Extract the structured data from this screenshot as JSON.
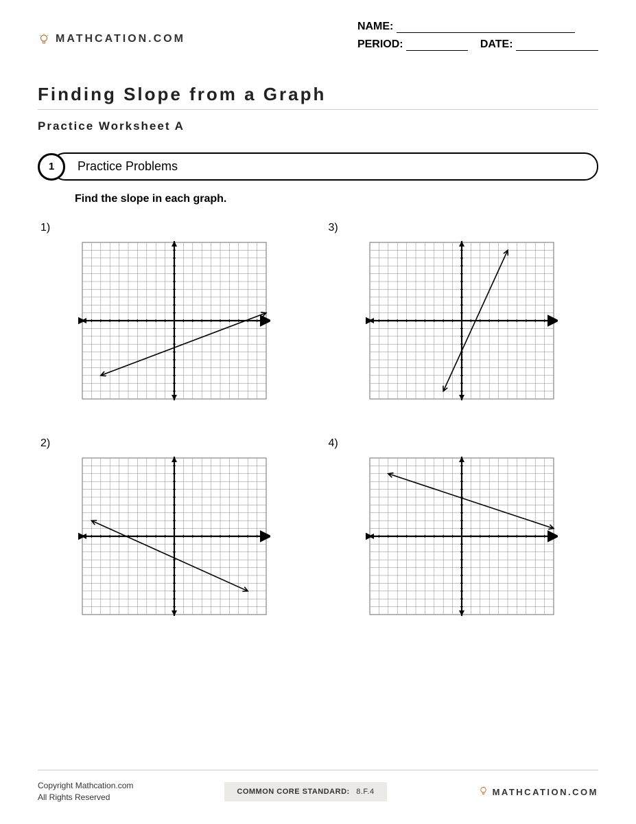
{
  "brand": "MATHCATION.COM",
  "header_fields": {
    "name_label": "NAME:",
    "period_label": "PERIOD:",
    "date_label": "DATE:"
  },
  "title": "Finding Slope from a Graph",
  "subtitle": "Practice Worksheet A",
  "section": {
    "number": "1",
    "label": "Practice Problems"
  },
  "instruction": "Find the slope in each graph.",
  "graph_style": {
    "type": "coordinate-grid",
    "x_range": [
      -10,
      10
    ],
    "y_range": [
      -10,
      10
    ],
    "grid_step": 1,
    "grid_color": "#888888",
    "grid_stroke": 0.5,
    "axis_color": "#000000",
    "axis_stroke": 2.2,
    "line_color": "#000000",
    "line_stroke": 1.6,
    "background_color": "#ffffff",
    "border_color": "#555555",
    "tick_length": 2
  },
  "problems": [
    {
      "label": "1)",
      "line": {
        "x1": -8,
        "y1": -7,
        "x2": 10,
        "y2": 1
      }
    },
    {
      "label": "3)",
      "line": {
        "x1": -2,
        "y1": -9,
        "x2": 5,
        "y2": 9
      }
    },
    {
      "label": "2)",
      "line": {
        "x1": -9,
        "y1": 2,
        "x2": 8,
        "y2": -7
      }
    },
    {
      "label": "4)",
      "line": {
        "x1": -8,
        "y1": 8,
        "x2": 10,
        "y2": 1
      }
    }
  ],
  "footer": {
    "copyright_line1": "Copyright Mathcation.com",
    "copyright_line2": "All Rights Reserved",
    "standard_label": "COMMON CORE STANDARD:",
    "standard_value": "8.F.4"
  }
}
